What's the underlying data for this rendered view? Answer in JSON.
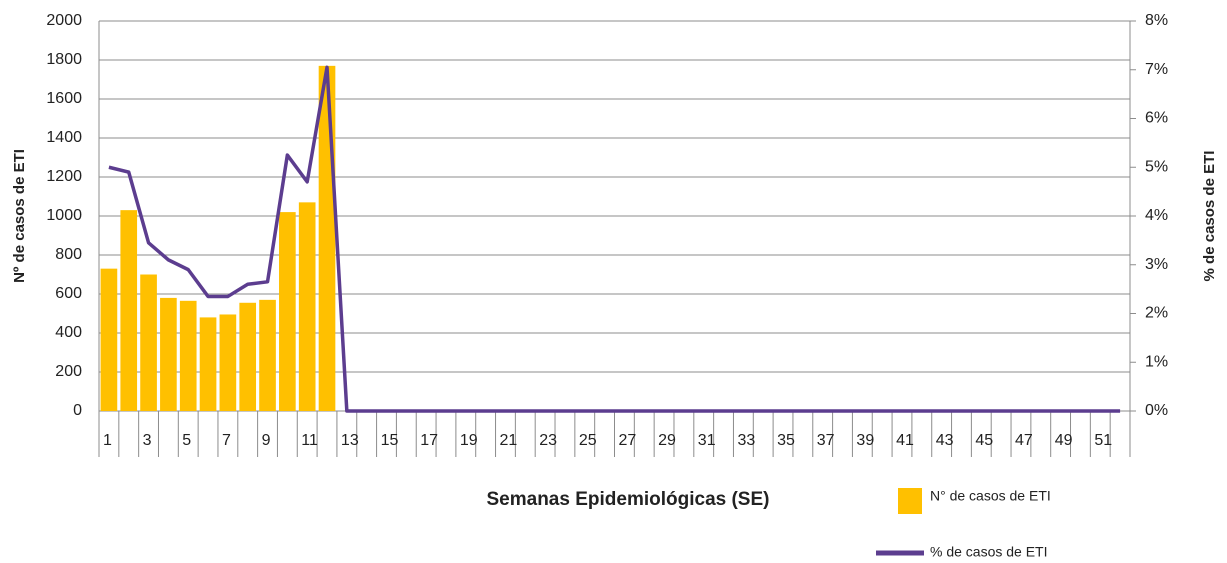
{
  "chart_data": {
    "type": "bar_line",
    "x_label": "Semanas Epidemiológicas (SE)",
    "y_label": "Nº de casos de ETI",
    "y2_label": "% de casos de ETI",
    "categories": [
      "1",
      null,
      "3",
      null,
      "5",
      null,
      "7",
      null,
      "9",
      null,
      "11",
      null,
      "13",
      null,
      "15",
      null,
      "17",
      null,
      "19",
      null,
      "21",
      null,
      "23",
      null,
      "25",
      null,
      "27",
      null,
      "29",
      null,
      "31",
      null,
      "33",
      null,
      "35",
      null,
      "37",
      null,
      "39",
      null,
      "41",
      null,
      "43",
      null,
      "45",
      null,
      "47",
      null,
      "49",
      null,
      "51",
      null
    ],
    "series": [
      {
        "name": "N° de casos de ETI",
        "type": "bar",
        "color": "#ffc000",
        "values": [
          730,
          1030,
          700,
          580,
          565,
          480,
          495,
          555,
          570,
          1020,
          1070,
          1770,
          0,
          0,
          0,
          0,
          0,
          0,
          0,
          0,
          0,
          0,
          0,
          0,
          0,
          0,
          0,
          0,
          0,
          0,
          0,
          0,
          0,
          0,
          0,
          0,
          0,
          0,
          0,
          0,
          0,
          0,
          0,
          0,
          0,
          0,
          0,
          0,
          0,
          0,
          0,
          0
        ]
      },
      {
        "name": "% de casos de ETI",
        "type": "line",
        "axis": "y2",
        "color": "#5c3d8f",
        "values": [
          5.0,
          4.9,
          3.45,
          3.1,
          2.9,
          2.35,
          2.35,
          2.6,
          2.65,
          5.25,
          4.7,
          7.05,
          0,
          0,
          0,
          0,
          0,
          0,
          0,
          0,
          0,
          0,
          0,
          0,
          0,
          0,
          0,
          0,
          0,
          0,
          0,
          0,
          0,
          0,
          0,
          0,
          0,
          0,
          0,
          0,
          0,
          0,
          0,
          0,
          0,
          0,
          0,
          0,
          0,
          0,
          0,
          0
        ]
      }
    ],
    "ylim": [
      0,
      2000
    ],
    "yticks": [
      0,
      200,
      400,
      600,
      800,
      1000,
      1200,
      1400,
      1600,
      1800,
      2000
    ],
    "y2lim": [
      0,
      8
    ],
    "y2ticks": [
      {
        "value": 0,
        "label": "0%"
      },
      {
        "value": 1,
        "label": "1%"
      },
      {
        "value": 2,
        "label": "2%"
      },
      {
        "value": 3,
        "label": "3%"
      },
      {
        "value": 4,
        "label": "4%"
      },
      {
        "value": 5,
        "label": "5%"
      },
      {
        "value": 6,
        "label": "6%"
      },
      {
        "value": 7,
        "label": "7%"
      },
      {
        "value": 8,
        "label": "8%"
      }
    ],
    "grid": true
  }
}
